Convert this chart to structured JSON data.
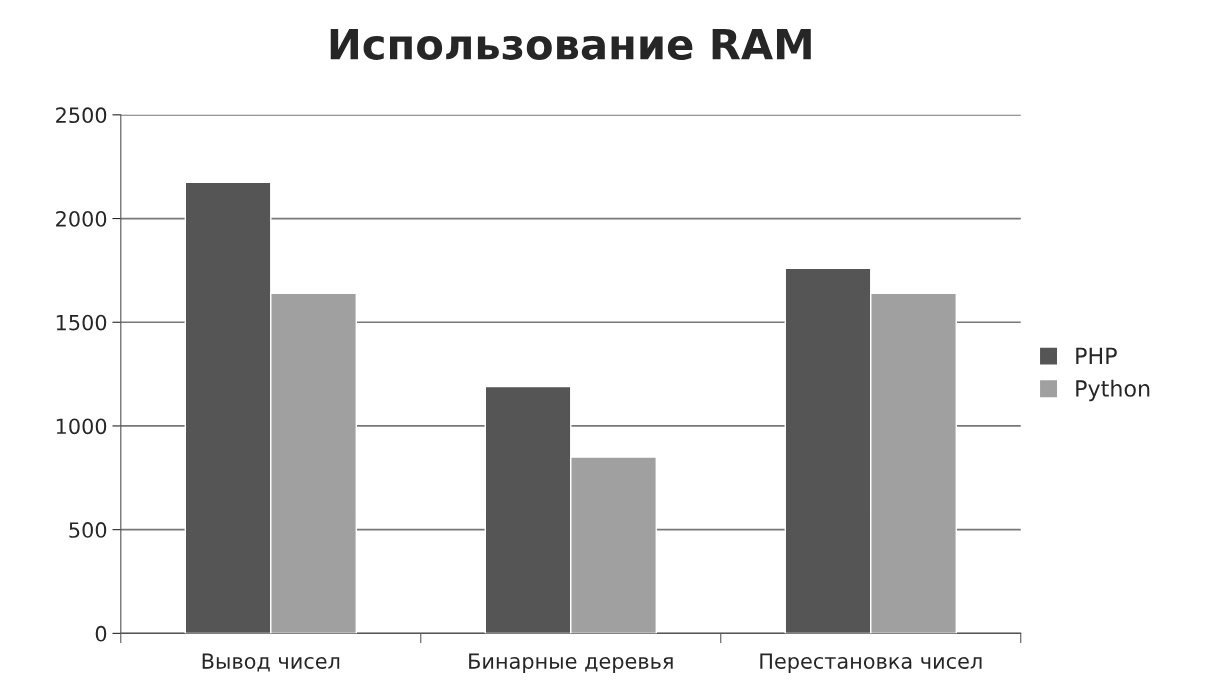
{
  "chart_data": {
    "type": "bar",
    "title": "Использование RAM",
    "categories": [
      "Вывод чисел",
      "Бинарные деревья",
      "Перестановка чисел"
    ],
    "series": [
      {
        "name": "PHP",
        "color": "#555555",
        "values": [
          2175,
          1190,
          1760
        ]
      },
      {
        "name": "Python",
        "color": "#a0a0a0",
        "values": [
          1640,
          850,
          1640
        ]
      }
    ],
    "ylim": [
      0,
      2500
    ],
    "yticks": [
      0,
      500,
      1000,
      1500,
      2000,
      2500
    ],
    "grid": "y",
    "legend": "right"
  }
}
